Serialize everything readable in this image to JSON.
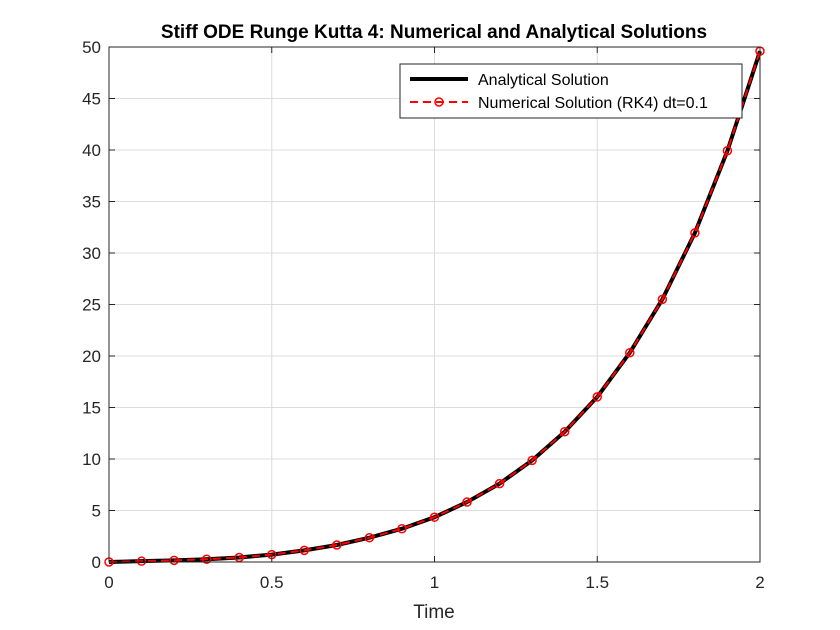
{
  "chart_data": {
    "type": "line",
    "title": "Stiff ODE Runge Kutta 4: Numerical and Analytical Solutions",
    "xlabel": "Time",
    "ylabel": "",
    "xlim": [
      0,
      2
    ],
    "ylim": [
      0,
      50
    ],
    "xticks": [
      0,
      0.5,
      1,
      1.5,
      2
    ],
    "xtick_labels": [
      "0",
      "0.5",
      "1",
      "1.5",
      "2"
    ],
    "yticks": [
      0,
      5,
      10,
      15,
      20,
      25,
      30,
      35,
      40,
      45,
      50
    ],
    "ytick_labels": [
      "0",
      "5",
      "10",
      "15",
      "20",
      "25",
      "30",
      "35",
      "40",
      "45",
      "50"
    ],
    "grid": true,
    "legend_position": "top-right",
    "series": [
      {
        "name": "Analytical Solution",
        "color": "#000000",
        "line_style": "solid",
        "marker": "none",
        "x": [
          0,
          0.1,
          0.2,
          0.3,
          0.4,
          0.5,
          0.6,
          0.7,
          0.8,
          0.9,
          1.0,
          1.1,
          1.2,
          1.3,
          1.4,
          1.5,
          1.6,
          1.7,
          1.8,
          1.9,
          2.0
        ],
        "y": [
          0.0,
          0.08,
          0.16,
          0.27,
          0.44,
          0.72,
          1.13,
          1.65,
          2.36,
          3.23,
          4.35,
          5.82,
          7.61,
          9.87,
          12.65,
          16.03,
          20.32,
          25.5,
          31.95,
          39.93,
          49.6
        ]
      },
      {
        "name": "Numerical Solution (RK4) dt=0.1",
        "color": "#ff0000",
        "line_style": "dashed",
        "marker": "circle",
        "x": [
          0,
          0.1,
          0.2,
          0.3,
          0.4,
          0.5,
          0.6,
          0.7,
          0.8,
          0.9,
          1.0,
          1.1,
          1.2,
          1.3,
          1.4,
          1.5,
          1.6,
          1.7,
          1.8,
          1.9,
          2.0
        ],
        "y": [
          0.0,
          0.08,
          0.16,
          0.27,
          0.44,
          0.72,
          1.13,
          1.65,
          2.36,
          3.23,
          4.35,
          5.82,
          7.61,
          9.87,
          12.65,
          16.03,
          20.32,
          25.5,
          31.95,
          39.93,
          49.6
        ]
      }
    ]
  }
}
